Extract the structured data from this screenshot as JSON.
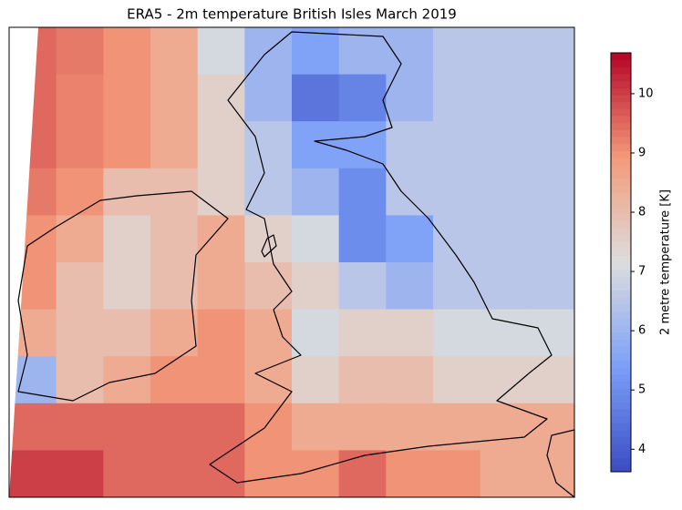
{
  "chart_data": {
    "type": "heatmap",
    "title": "ERA5 - 2m temperature British Isles March 2019",
    "colorbar_label": "2 metre temperature [K]",
    "colormap": "coolwarm",
    "zlim": [
      3.62,
      10.69
    ],
    "zticks": [
      4,
      5,
      6,
      7,
      8,
      9,
      10
    ],
    "values": [
      [
        9.5,
        9.3,
        9,
        8.5,
        7,
        6,
        5.5,
        6,
        6,
        6.5,
        6.5,
        6.5
      ],
      [
        9.5,
        9.2,
        9,
        8.5,
        7.5,
        6,
        4.5,
        4.8,
        6,
        6.5,
        6.5,
        6.5
      ],
      [
        9.5,
        9.2,
        9,
        8.5,
        7.5,
        6.5,
        5.5,
        5.5,
        6.5,
        6.5,
        6.5,
        6.5
      ],
      [
        9.3,
        9,
        8,
        8,
        7.5,
        6.5,
        6,
        5,
        6.5,
        6.5,
        6.5,
        6.5
      ],
      [
        9,
        8.5,
        7.5,
        8,
        8.5,
        7.5,
        7,
        5,
        5.5,
        6.5,
        6.5,
        6.5
      ],
      [
        9,
        8,
        7.5,
        8,
        8.5,
        8,
        7.5,
        6.5,
        6,
        6.5,
        6.5,
        6.5
      ],
      [
        8.5,
        8,
        8,
        8.5,
        9,
        8.5,
        7,
        7.5,
        7.5,
        7,
        7,
        7
      ],
      [
        6,
        8,
        8.5,
        9,
        9,
        8.5,
        7.5,
        8,
        8,
        7.5,
        7.5,
        7.5
      ],
      [
        9.5,
        9.5,
        9.5,
        9.5,
        9.5,
        9,
        8.5,
        8.5,
        8.5,
        8.5,
        8.5,
        8.5
      ],
      [
        10,
        10,
        9.5,
        9.5,
        9.5,
        9,
        9,
        9.5,
        9,
        9,
        8.5,
        8.5
      ]
    ]
  }
}
